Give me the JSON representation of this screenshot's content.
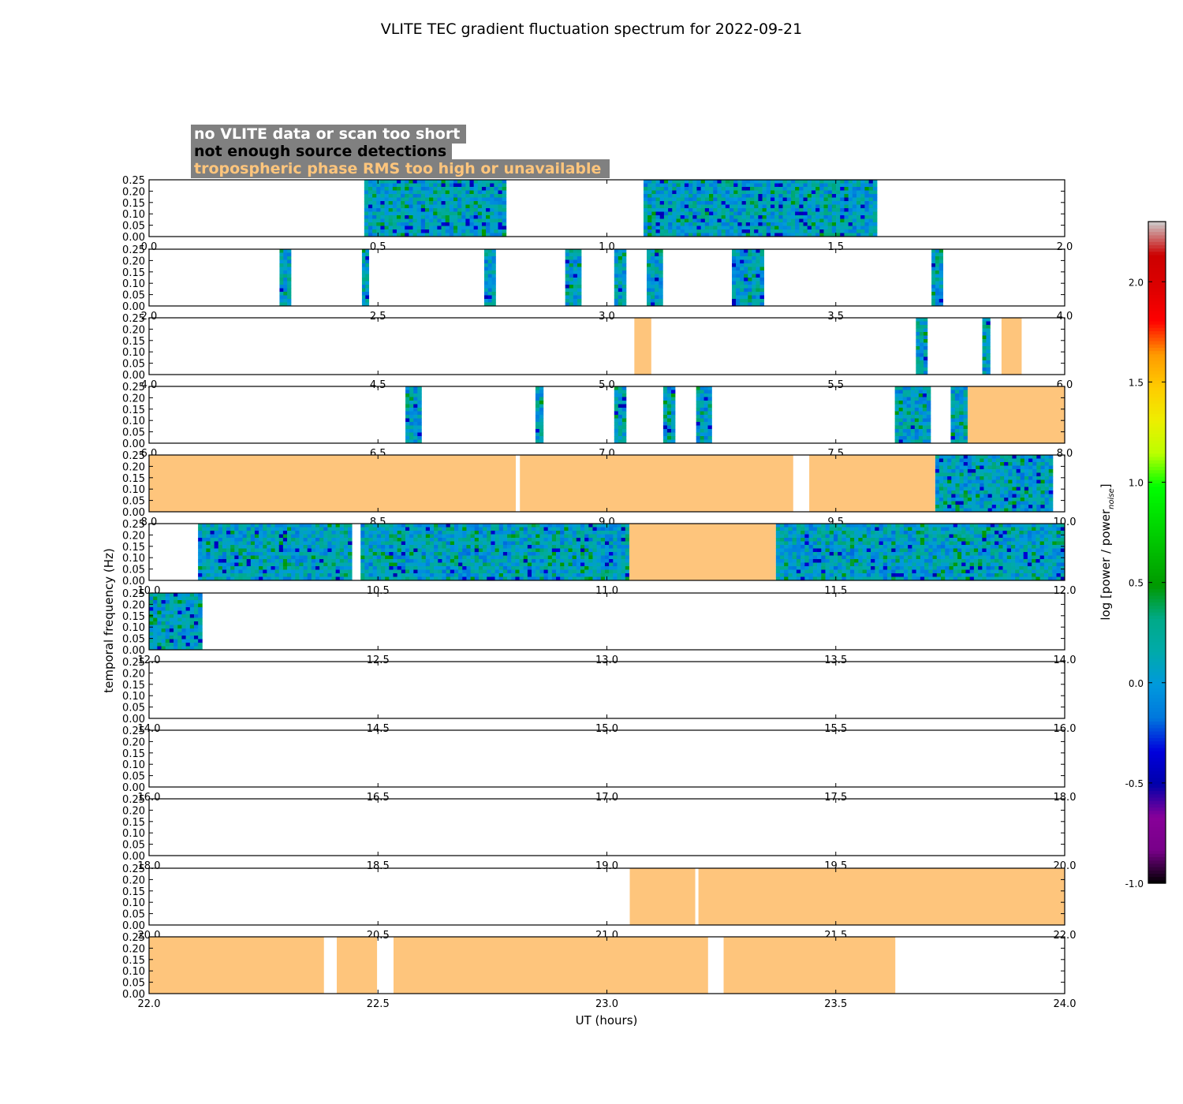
{
  "figure": {
    "title": "VLITE TEC gradient fluctuation spectrum for 2022-09-21",
    "xlabel": "UT (hours)",
    "ylabel": "temporal frequency (Hz)"
  },
  "legend": {
    "items": [
      {
        "label": "no VLITE data or scan too short",
        "color": "#ffffff"
      },
      {
        "label": "not enough source detections",
        "color": "#000000"
      },
      {
        "label": "tropospheric phase RMS too high or unavailable",
        "color": "#fec57c"
      }
    ],
    "background": "#808080"
  },
  "colors": {
    "trop_flag": "#fec57c",
    "spectrum_colormap": "nipy_spectral"
  },
  "colorbar": {
    "label_main": "log [power / power",
    "label_sub": "noise",
    "label_end": "]",
    "range": [
      -1.0,
      2.3
    ],
    "ticks": [
      "-1.0",
      "-0.5",
      "0.0",
      "0.5",
      "1.0",
      "1.5",
      "2.0"
    ],
    "tick_values": [
      -1.0,
      -0.5,
      0.0,
      0.5,
      1.0,
      1.5,
      2.0
    ]
  },
  "chart_data": {
    "type": "heatmap",
    "title": "VLITE TEC gradient fluctuation spectrum for 2022-09-21",
    "xlabel": "UT (hours)",
    "ylabel": "temporal frequency (Hz)",
    "ylim": [
      0.0,
      0.25
    ],
    "ytick_labels": [
      "0.00",
      "0.05",
      "0.10",
      "0.15",
      "0.20",
      "0.25"
    ],
    "ytick_values": [
      0.0,
      0.05,
      0.1,
      0.15,
      0.2,
      0.25
    ],
    "panels": [
      {
        "xlim": [
          0.0,
          2.0
        ],
        "xticks": [
          "0.0",
          "0.5",
          "1.0",
          "1.5",
          "2.0"
        ],
        "spectra": [
          [
            0.47,
            0.78
          ],
          [
            1.08,
            1.59
          ]
        ],
        "trop": []
      },
      {
        "xlim": [
          2.0,
          4.0
        ],
        "xticks": [
          "2.0",
          "2.5",
          "3.0",
          "3.5",
          "4.0"
        ],
        "spectra": [
          [
            2.285,
            2.31
          ],
          [
            2.465,
            2.48
          ],
          [
            2.732,
            2.757
          ],
          [
            2.909,
            2.944
          ],
          [
            3.016,
            3.042
          ],
          [
            3.087,
            3.122
          ],
          [
            3.273,
            3.343
          ],
          [
            3.709,
            3.734
          ]
        ],
        "trop": []
      },
      {
        "xlim": [
          4.0,
          6.0
        ],
        "xticks": [
          "4.0",
          "4.5",
          "5.0",
          "5.5",
          "6.0"
        ],
        "spectra": [
          [
            5.675,
            5.7
          ],
          [
            5.82,
            5.837
          ]
        ],
        "trop": [
          [
            5.06,
            5.097
          ],
          [
            5.862,
            5.906
          ]
        ]
      },
      {
        "xlim": [
          6.0,
          8.0
        ],
        "xticks": [
          "6.0",
          "6.5",
          "7.0",
          "7.5",
          "8.0"
        ],
        "spectra": [
          [
            6.56,
            6.595
          ],
          [
            6.844,
            6.861
          ],
          [
            7.016,
            7.042
          ],
          [
            7.123,
            7.149
          ],
          [
            7.195,
            7.229
          ],
          [
            7.629,
            7.707
          ],
          [
            7.751,
            7.788
          ]
        ],
        "trop": [
          [
            7.788,
            8.0
          ]
        ]
      },
      {
        "xlim": [
          8.0,
          10.0
        ],
        "xticks": [
          "8.0",
          "8.5",
          "9.0",
          "9.5",
          "10.0"
        ],
        "spectra": [
          [
            9.717,
            9.974
          ]
        ],
        "trop": [
          [
            8.0,
            8.801
          ],
          [
            8.81,
            9.407
          ],
          [
            9.442,
            9.717
          ]
        ]
      },
      {
        "xlim": [
          10.0,
          12.0
        ],
        "xticks": [
          "10.0",
          "10.5",
          "11.0",
          "11.5",
          "12.0"
        ],
        "spectra": [
          [
            10.107,
            10.443
          ],
          [
            10.462,
            11.049
          ],
          [
            11.369,
            12.0
          ]
        ],
        "trop": [
          [
            11.049,
            11.369
          ]
        ]
      },
      {
        "xlim": [
          12.0,
          14.0
        ],
        "xticks": [
          "12.0",
          "12.5",
          "13.0",
          "13.5",
          "14.0"
        ],
        "spectra": [
          [
            12.0,
            12.116
          ]
        ],
        "trop": []
      },
      {
        "xlim": [
          14.0,
          16.0
        ],
        "xticks": [
          "14.0",
          "14.5",
          "15.0",
          "15.5",
          "16.0"
        ],
        "spectra": [],
        "trop": []
      },
      {
        "xlim": [
          16.0,
          18.0
        ],
        "xticks": [
          "16.0",
          "16.5",
          "17.0",
          "17.5",
          "18.0"
        ],
        "spectra": [],
        "trop": []
      },
      {
        "xlim": [
          18.0,
          20.0
        ],
        "xticks": [
          "18.0",
          "18.5",
          "19.0",
          "19.5",
          "20.0"
        ],
        "spectra": [],
        "trop": []
      },
      {
        "xlim": [
          20.0,
          22.0
        ],
        "xticks": [
          "20.0",
          "20.5",
          "21.0",
          "21.5",
          "22.0"
        ],
        "spectra": [],
        "trop": [
          [
            21.05,
            21.193
          ],
          [
            21.2,
            22.0
          ]
        ]
      },
      {
        "xlim": [
          22.0,
          24.0
        ],
        "xticks": [
          "22.0",
          "22.5",
          "23.0",
          "23.5",
          "24.0"
        ],
        "spectra": [],
        "trop": [
          [
            22.0,
            22.382
          ],
          [
            22.41,
            22.498
          ],
          [
            22.534,
            23.221
          ],
          [
            23.255,
            23.63
          ]
        ]
      }
    ]
  }
}
